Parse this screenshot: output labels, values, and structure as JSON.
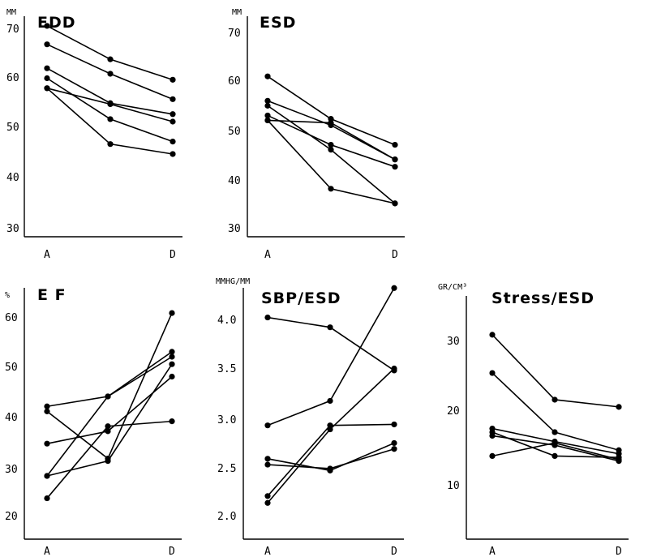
{
  "chart_data": [
    {
      "type": "line",
      "title": "EDD",
      "unit": "MM",
      "yticks": [
        "70",
        "60",
        "50",
        "40",
        "30"
      ],
      "ylim": [
        28,
        72
      ],
      "x": [
        "A",
        "",
        "D"
      ],
      "xtick_labels": [
        "A",
        "D"
      ],
      "series": [
        {
          "values": [
            70.5,
            63.8,
            59.7
          ]
        },
        {
          "values": [
            66.8,
            60.9,
            55.8
          ]
        },
        {
          "values": [
            62.0,
            55.0,
            52.8
          ]
        },
        {
          "values": [
            60.0,
            51.8,
            47.3
          ]
        },
        {
          "values": [
            58.0,
            54.8,
            51.3
          ]
        },
        {
          "values": [
            58.0,
            46.8,
            44.8
          ]
        }
      ]
    },
    {
      "type": "line",
      "title": "ESD",
      "unit": "MM",
      "yticks": [
        "70",
        "60",
        "50",
        "40",
        "30"
      ],
      "ylim": [
        28,
        72
      ],
      "x": [
        "A",
        "",
        "D"
      ],
      "xtick_labels": [
        "A",
        "D"
      ],
      "series": [
        {
          "values": [
            61.0,
            52.3,
            47.0
          ]
        },
        {
          "values": [
            56.0,
            51.0,
            44.0
          ]
        },
        {
          "values": [
            55.0,
            46.0,
            35.0
          ]
        },
        {
          "values": [
            53.0,
            47.0,
            42.5
          ]
        },
        {
          "values": [
            52.0,
            38.0,
            35.0
          ]
        },
        {
          "values": [
            52.0,
            51.5,
            44.0
          ]
        }
      ]
    },
    {
      "type": "line",
      "title": "E F",
      "unit": "%",
      "yticks": [
        "60",
        "50",
        "40",
        "30",
        "20"
      ],
      "ylim": [
        18,
        63
      ],
      "x": [
        "A",
        "",
        "D"
      ],
      "xtick_labels": [
        "A",
        "D"
      ],
      "series": [
        {
          "values": [
            42.0,
            44.0,
            52.0
          ]
        },
        {
          "values": [
            41.0,
            31.5,
            60.8
          ]
        },
        {
          "values": [
            34.5,
            37.0,
            48.0
          ]
        },
        {
          "values": [
            28.0,
            44.0,
            53.0
          ]
        },
        {
          "values": [
            28.0,
            31.0,
            50.5
          ]
        },
        {
          "values": [
            23.5,
            38.0,
            39.0
          ]
        }
      ]
    },
    {
      "type": "line",
      "title": "SBP/ESD",
      "unit": "MMHG/MM",
      "yticks": [
        "4.0",
        "3.5",
        "3.0",
        "2.5",
        "2.0"
      ],
      "ylim": [
        1.85,
        4.35
      ],
      "x": [
        "A",
        "",
        "D"
      ],
      "xtick_labels": [
        "A",
        "D"
      ],
      "series": [
        {
          "values": [
            4.02,
            3.92,
            3.48
          ]
        },
        {
          "values": [
            2.92,
            3.17,
            4.32
          ]
        },
        {
          "values": [
            2.58,
            2.46,
            2.74
          ]
        },
        {
          "values": [
            2.52,
            2.48,
            2.68
          ]
        },
        {
          "values": [
            2.2,
            2.92,
            2.93
          ]
        },
        {
          "values": [
            2.13,
            2.88,
            3.5
          ]
        }
      ]
    },
    {
      "type": "line",
      "title": "Stress/ESD",
      "unit": "GR/CM³",
      "yticks": [
        "30",
        "20",
        "10"
      ],
      "ylim": [
        3,
        35
      ],
      "x": [
        "A",
        "",
        "D"
      ],
      "xtick_labels": [
        "A",
        "D"
      ],
      "series": [
        {
          "values": [
            30.8,
            21.8,
            20.8
          ]
        },
        {
          "values": [
            25.5,
            17.3,
            14.8
          ]
        },
        {
          "values": [
            17.8,
            16.0,
            14.3
          ]
        },
        {
          "values": [
            17.3,
            14.0,
            13.8
          ]
        },
        {
          "values": [
            16.8,
            15.5,
            13.3
          ]
        },
        {
          "values": [
            14.0,
            15.8,
            13.5
          ]
        }
      ]
    }
  ]
}
